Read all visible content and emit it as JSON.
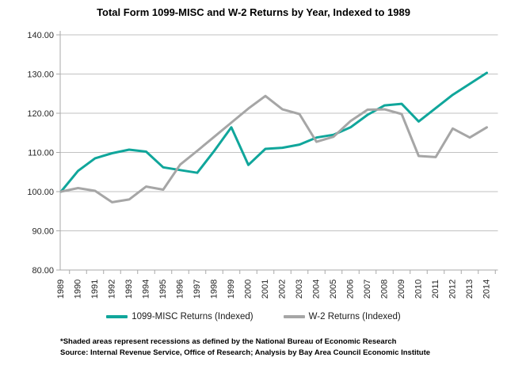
{
  "title": "Total Form 1099-MISC and W-2 Returns by Year, Indexed to 1989",
  "footnotes": {
    "line1": "*Shaded areas represent recessions as defined by the National Bureau of Economic Research",
    "line2": "Source: Internal Revenue Service, Office of Research; Analysis by Bay Area Council Economic Institute"
  },
  "colors": {
    "series1_teal": "#10A69B",
    "series2_gray": "#A6A6A6",
    "gridline": "#C2C2C2",
    "axis": "#A9A9A9",
    "label_text": "#262626",
    "title_text": "#000000"
  },
  "chart_data": {
    "type": "line",
    "title": "Total Form 1099-MISC and W-2 Returns by Year, Indexed to 1989",
    "categories": [
      "1989",
      "1990",
      "1991",
      "1992",
      "1993",
      "1994",
      "1995",
      "1996",
      "1997",
      "1998",
      "1999",
      "2000",
      "2001",
      "2002",
      "2003",
      "2004",
      "2005",
      "2006",
      "2007",
      "2008",
      "2009",
      "2010",
      "2011",
      "2012",
      "2013",
      "2014"
    ],
    "series": [
      {
        "name": "1099-MISC Returns (Indexed)",
        "color": "#10A69B",
        "values": [
          100.0,
          105.3,
          108.5,
          109.8,
          110.7,
          110.2,
          106.2,
          105.5,
          104.8,
          110.4,
          116.4,
          106.8,
          110.9,
          111.2,
          112.0,
          113.8,
          114.5,
          116.4,
          119.6,
          122.0,
          122.4,
          117.9,
          121.3,
          124.7,
          127.5,
          130.3
        ]
      },
      {
        "name": "W-2 Returns (Indexed)",
        "color": "#A6A6A6",
        "values": [
          100.0,
          100.9,
          100.2,
          97.3,
          98.0,
          101.3,
          100.5,
          106.9,
          110.4,
          114.0,
          117.6,
          121.2,
          124.4,
          121.0,
          119.8,
          112.7,
          114.0,
          118.0,
          120.9,
          121.0,
          119.8,
          109.1,
          108.8,
          116.1,
          113.8,
          116.4
        ]
      }
    ],
    "xlabel": "",
    "ylabel": "",
    "ylim": [
      80,
      140
    ],
    "ytick_labels": [
      "140.00",
      "130.00",
      "120.00",
      "110.00",
      "100.00",
      "90.00",
      "80.00"
    ],
    "grid": "horizontal",
    "legend_position": "bottom",
    "x_label_rotation": -90
  }
}
